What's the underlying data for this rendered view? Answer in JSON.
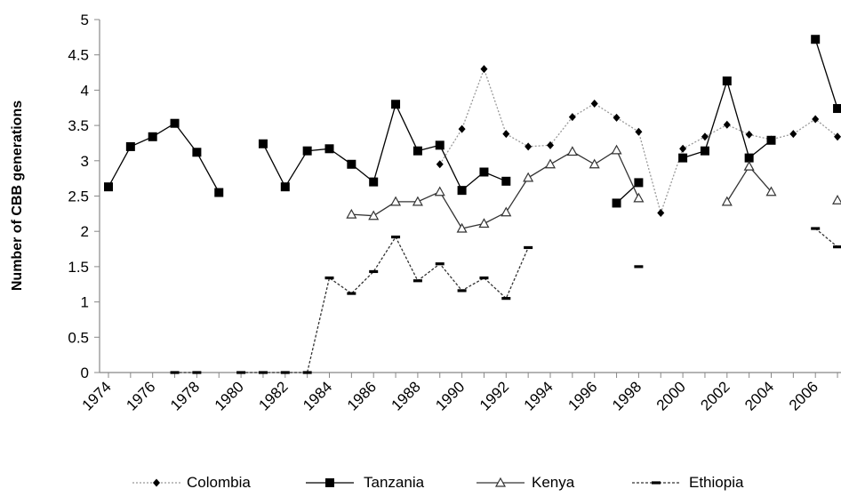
{
  "chart_data": {
    "type": "line",
    "title": "",
    "xlabel": "",
    "ylabel": "Number of CBB generations",
    "ylim": [
      0,
      5
    ],
    "yticks": [
      "0",
      "0.5",
      "1",
      "1.5",
      "2",
      "2.5",
      "3",
      "3.5",
      "4",
      "4.5",
      "5"
    ],
    "xlim": [
      1974,
      2007
    ],
    "xticks": [
      "1974",
      "1976",
      "1978",
      "1980",
      "1982",
      "1984",
      "1986",
      "1988",
      "1990",
      "1992",
      "1994",
      "1996",
      "1998",
      "2000",
      "2002",
      "2004",
      "2006"
    ],
    "grid": false,
    "legend": "bottom",
    "series": [
      {
        "name": "Colombia",
        "color": "#999999",
        "dash": "2,2",
        "marker": "diamond",
        "points": [
          [
            1989,
            2.95
          ],
          [
            1990,
            3.45
          ],
          [
            1991,
            4.3
          ],
          [
            1992,
            3.38
          ],
          [
            1993,
            3.2
          ],
          [
            1994,
            3.22
          ],
          [
            1995,
            3.62
          ],
          [
            1996,
            3.81
          ],
          [
            1997,
            3.61
          ],
          [
            1998,
            3.41
          ],
          [
            1999,
            2.26
          ],
          [
            2000,
            3.17
          ],
          [
            2001,
            3.34
          ],
          [
            2002,
            3.51
          ],
          [
            2003,
            3.37
          ],
          [
            2004,
            3.3
          ],
          [
            2005,
            3.38
          ],
          [
            2006,
            3.59
          ],
          [
            2007,
            3.34
          ]
        ]
      },
      {
        "name": "Tanzania",
        "color": "#000000",
        "dash": "",
        "marker": "square",
        "points": [
          [
            1974,
            2.63
          ],
          [
            1975,
            3.2
          ],
          [
            1976,
            3.34
          ],
          [
            1977,
            3.53
          ],
          [
            1978,
            3.12
          ],
          [
            1979,
            2.55
          ],
          [
            1980,
            null
          ],
          [
            1981,
            3.24
          ],
          [
            1982,
            2.63
          ],
          [
            1983,
            3.14
          ],
          [
            1984,
            3.17
          ],
          [
            1985,
            2.95
          ],
          [
            1986,
            2.7
          ],
          [
            1987,
            3.8
          ],
          [
            1988,
            3.14
          ],
          [
            1989,
            3.22
          ],
          [
            1990,
            2.58
          ],
          [
            1991,
            2.84
          ],
          [
            1992,
            2.71
          ],
          [
            1993,
            null
          ],
          [
            1997,
            2.4
          ],
          [
            1998,
            2.69
          ],
          [
            1999,
            null
          ],
          [
            2000,
            3.04
          ],
          [
            2001,
            3.14
          ],
          [
            2002,
            4.13
          ],
          [
            2003,
            3.04
          ],
          [
            2004,
            3.29
          ],
          [
            2005,
            null
          ],
          [
            2006,
            4.72
          ],
          [
            2007,
            3.74
          ]
        ]
      },
      {
        "name": "Kenya",
        "color": "#333333",
        "dash": "",
        "marker": "triangle",
        "points": [
          [
            1985,
            2.24
          ],
          [
            1986,
            2.22
          ],
          [
            1987,
            2.42
          ],
          [
            1988,
            2.42
          ],
          [
            1989,
            2.56
          ],
          [
            1990,
            2.04
          ],
          [
            1991,
            2.11
          ],
          [
            1992,
            2.27
          ],
          [
            1993,
            2.76
          ],
          [
            1994,
            2.95
          ],
          [
            1995,
            3.13
          ],
          [
            1996,
            2.95
          ],
          [
            1997,
            3.15
          ],
          [
            1998,
            2.47
          ],
          [
            1999,
            null
          ],
          [
            2002,
            2.42
          ],
          [
            2003,
            2.92
          ],
          [
            2004,
            2.56
          ],
          [
            2005,
            null
          ],
          [
            2007,
            2.44
          ]
        ]
      },
      {
        "name": "Ethiopia",
        "color": "#333333",
        "dash": "3,2",
        "marker": "dash",
        "points": [
          [
            1977,
            0
          ],
          [
            1978,
            0
          ],
          [
            1979,
            null
          ],
          [
            1980,
            0
          ],
          [
            1981,
            0
          ],
          [
            1982,
            0
          ],
          [
            1983,
            0
          ],
          [
            1984,
            1.34
          ],
          [
            1985,
            1.12
          ],
          [
            1986,
            1.43
          ],
          [
            1987,
            1.92
          ],
          [
            1988,
            1.3
          ],
          [
            1989,
            1.54
          ],
          [
            1990,
            1.16
          ],
          [
            1991,
            1.34
          ],
          [
            1992,
            1.05
          ],
          [
            1993,
            1.77
          ],
          [
            1994,
            null
          ],
          [
            1998,
            1.5
          ],
          [
            1999,
            null
          ],
          [
            2006,
            2.04
          ],
          [
            2007,
            1.78
          ]
        ]
      }
    ]
  }
}
